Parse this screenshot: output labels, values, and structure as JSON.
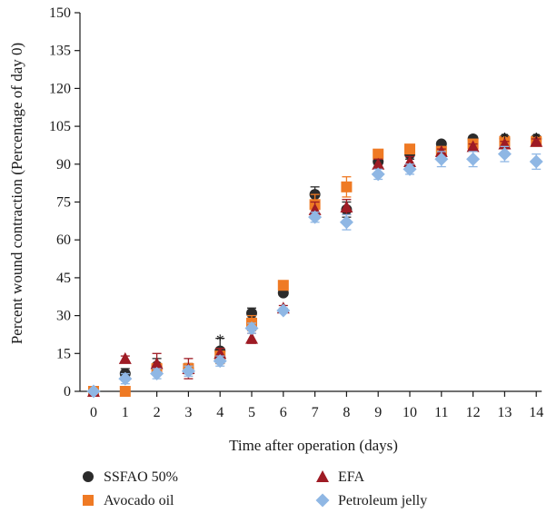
{
  "chart_data": {
    "type": "scatter",
    "xlabel": "Time after operation (days)",
    "ylabel": "Percent wound contraction (Percentage of day 0)",
    "xlim": [
      0,
      14
    ],
    "ylim": [
      0,
      150
    ],
    "x_ticks": [
      0,
      1,
      2,
      3,
      4,
      5,
      6,
      7,
      8,
      9,
      10,
      11,
      12,
      13,
      14
    ],
    "y_ticks": [
      0,
      15,
      30,
      45,
      60,
      75,
      90,
      105,
      120,
      135,
      150
    ],
    "legend_position": "bottom",
    "series": [
      {
        "name": "SSFAO 50%",
        "marker": "circle",
        "color": "#2b2b2b",
        "x": [
          0,
          1,
          2,
          3,
          4,
          5,
          6,
          7,
          8,
          9,
          10,
          11,
          12,
          13,
          14
        ],
        "y": [
          0,
          7,
          10,
          9,
          16,
          31,
          39,
          78,
          72,
          91,
          94,
          98,
          100,
          100,
          100
        ],
        "err": [
          0,
          2,
          3,
          2,
          5,
          2,
          1,
          3,
          3,
          2,
          2,
          1,
          1,
          1,
          1
        ]
      },
      {
        "name": "Avocado oil",
        "marker": "square",
        "color": "#ef7a24",
        "x": [
          0,
          1,
          2,
          3,
          4,
          5,
          6,
          7,
          8,
          9,
          10,
          11,
          12,
          13,
          14
        ],
        "y": [
          0,
          0,
          9,
          9,
          14,
          27,
          42,
          74,
          81,
          94,
          96,
          95,
          98,
          99,
          99
        ],
        "err": [
          0,
          1,
          2,
          2,
          3,
          3,
          1,
          4,
          4,
          1,
          1,
          2,
          1,
          1,
          1
        ]
      },
      {
        "name": "EFA",
        "marker": "triangle",
        "color": "#9e1b24",
        "x": [
          0,
          1,
          2,
          3,
          4,
          5,
          6,
          7,
          8,
          9,
          10,
          11,
          12,
          13,
          14
        ],
        "y": [
          0,
          13,
          11,
          9,
          15,
          21,
          33,
          72,
          73,
          90,
          91,
          95,
          97,
          98,
          99
        ],
        "err": [
          0,
          1,
          4,
          4,
          2,
          2,
          1,
          3,
          3,
          2,
          2,
          1,
          1,
          1,
          1
        ]
      },
      {
        "name": "Petroleum jelly",
        "marker": "diamond",
        "color": "#8fb7e4",
        "x": [
          0,
          1,
          2,
          3,
          4,
          5,
          6,
          7,
          8,
          9,
          10,
          11,
          12,
          13,
          14
        ],
        "y": [
          0,
          5,
          7,
          8,
          12,
          25,
          32,
          69,
          67,
          86,
          88,
          92,
          92,
          94,
          91
        ],
        "err": [
          0,
          2,
          2,
          2,
          2,
          2,
          1,
          2,
          3,
          2,
          2,
          3,
          3,
          3,
          3
        ]
      }
    ],
    "annotations": [
      {
        "text": "*",
        "x": 4,
        "y": 21
      },
      {
        "text": "*",
        "x": 13,
        "y": 101
      },
      {
        "text": "*",
        "x": 14,
        "y": 101
      }
    ]
  }
}
